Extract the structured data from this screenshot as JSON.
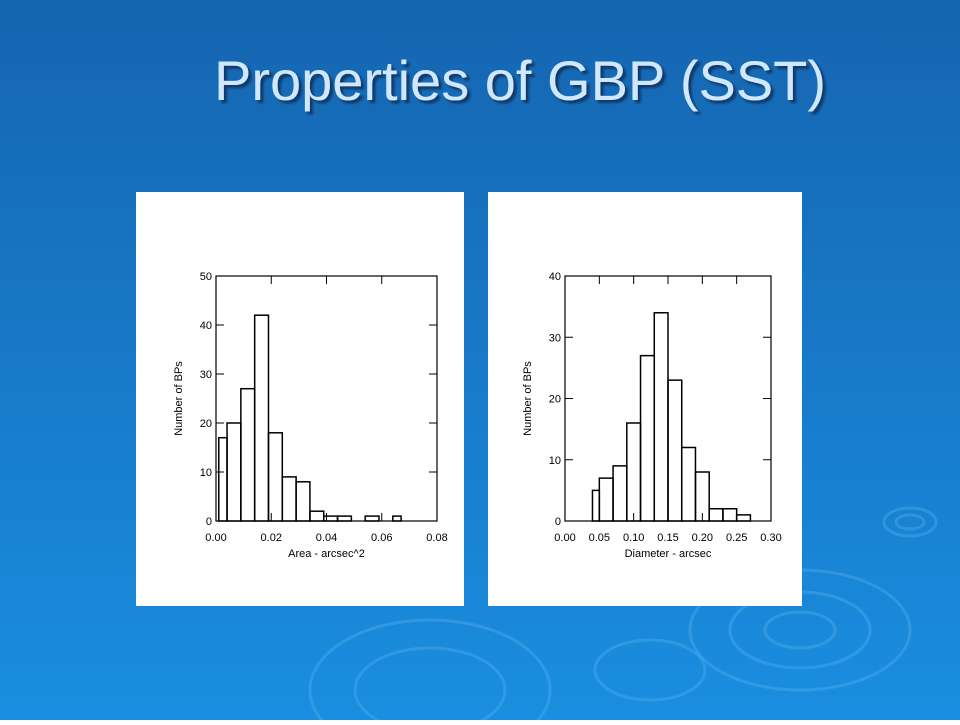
{
  "slide": {
    "title": "Properties of GBP (SST)"
  },
  "chart_data": [
    {
      "type": "histogram",
      "xlabel": "Area - arcsec^2",
      "ylabel": "Number of BPs",
      "bins": [
        0.001,
        0.004,
        0.009,
        0.014,
        0.019,
        0.024,
        0.029,
        0.034,
        0.039,
        0.044,
        0.049,
        0.054,
        0.059,
        0.064,
        0.067
      ],
      "counts": [
        17,
        20,
        27,
        42,
        18,
        9,
        8,
        2,
        1,
        1,
        0,
        1,
        0,
        1
      ],
      "color": "#000000",
      "xlim": [
        0,
        0.08
      ],
      "xticks": [
        {
          "value": 0,
          "label": "0.00"
        },
        0.02,
        0.04,
        0.06,
        0.08
      ],
      "ylim": [
        0,
        50
      ],
      "yticks": [
        0,
        10,
        20,
        30,
        40,
        50
      ]
    },
    {
      "type": "histogram",
      "xlabel": "Diameter - arcsec",
      "ylabel": "Number of BPs",
      "bins": [
        0.04,
        0.05,
        0.07,
        0.09,
        0.11,
        0.13,
        0.15,
        0.17,
        0.19,
        0.21,
        0.23,
        0.25,
        0.27
      ],
      "counts": [
        5,
        7,
        9,
        16,
        27,
        34,
        23,
        12,
        8,
        2,
        2,
        1
      ],
      "color": "#000000",
      "xlim": [
        0,
        0.3
      ],
      "xticks": [
        {
          "value": 0,
          "label": "0.00"
        },
        0.05,
        {
          "value": 0.1,
          "label": "0.10"
        },
        0.15,
        {
          "value": 0.2,
          "label": "0.20"
        },
        0.25,
        {
          "value": 0.3,
          "label": "0.30"
        }
      ],
      "ylim": [
        0,
        40
      ],
      "yticks": [
        0,
        10,
        20,
        30,
        40
      ]
    }
  ]
}
